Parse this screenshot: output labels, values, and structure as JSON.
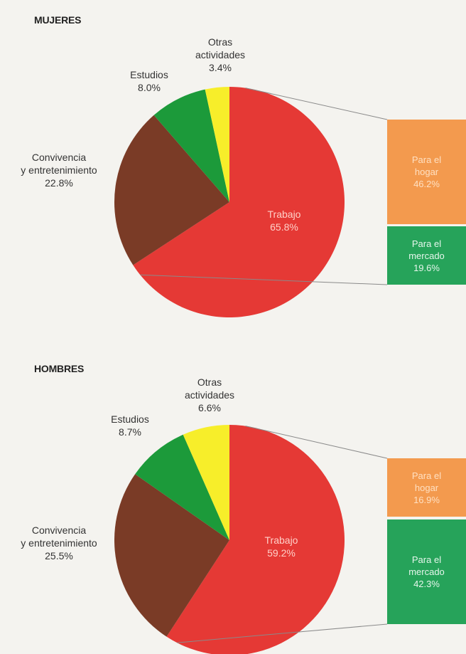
{
  "colors": {
    "trabajo": "#e53935",
    "convivencia": "#7a3b26",
    "estudios": "#1c9a3a",
    "otras": "#f7ee2a",
    "hogar": "#f39a4e",
    "mercado": "#26a35a",
    "connector": "#8a8a8a"
  },
  "chart_data": [
    {
      "type": "pie",
      "title": "MUJERES",
      "labels": {
        "otras": [
          "Otras",
          "actividades",
          "3.4%"
        ],
        "estudios": [
          "Estudios",
          "8.0%"
        ],
        "convivencia": [
          "Convivencia",
          "y entretenimiento",
          "22.8%"
        ],
        "trabajo": [
          "Trabajo",
          "65.8%"
        ],
        "hogar": [
          "Para el",
          "hogar",
          "46.2%"
        ],
        "mercado": [
          "Para el",
          "mercado",
          "19.6%"
        ]
      },
      "slices": [
        {
          "key": "trabajo",
          "value": 65.8
        },
        {
          "key": "convivencia",
          "value": 22.8
        },
        {
          "key": "estudios",
          "value": 8.0
        },
        {
          "key": "otras",
          "value": 3.4
        }
      ],
      "breakdown": [
        {
          "key": "hogar",
          "value": 46.2
        },
        {
          "key": "mercado",
          "value": 19.6
        }
      ]
    },
    {
      "type": "pie",
      "title": "HOMBRES",
      "labels": {
        "otras": [
          "Otras",
          "actividades",
          "6.6%"
        ],
        "estudios": [
          "Estudios",
          "8.7%"
        ],
        "convivencia": [
          "Convivencia",
          "y entretenimiento",
          "25.5%"
        ],
        "trabajo": [
          "Trabajo",
          "59.2%"
        ],
        "hogar": [
          "Para el",
          "hogar",
          "16.9%"
        ],
        "mercado": [
          "Para el",
          "mercado",
          "42.3%"
        ]
      },
      "slices": [
        {
          "key": "trabajo",
          "value": 59.2
        },
        {
          "key": "convivencia",
          "value": 25.5
        },
        {
          "key": "estudios",
          "value": 8.7
        },
        {
          "key": "otras",
          "value": 6.6
        }
      ],
      "breakdown": [
        {
          "key": "hogar",
          "value": 16.9
        },
        {
          "key": "mercado",
          "value": 42.3
        }
      ]
    }
  ]
}
